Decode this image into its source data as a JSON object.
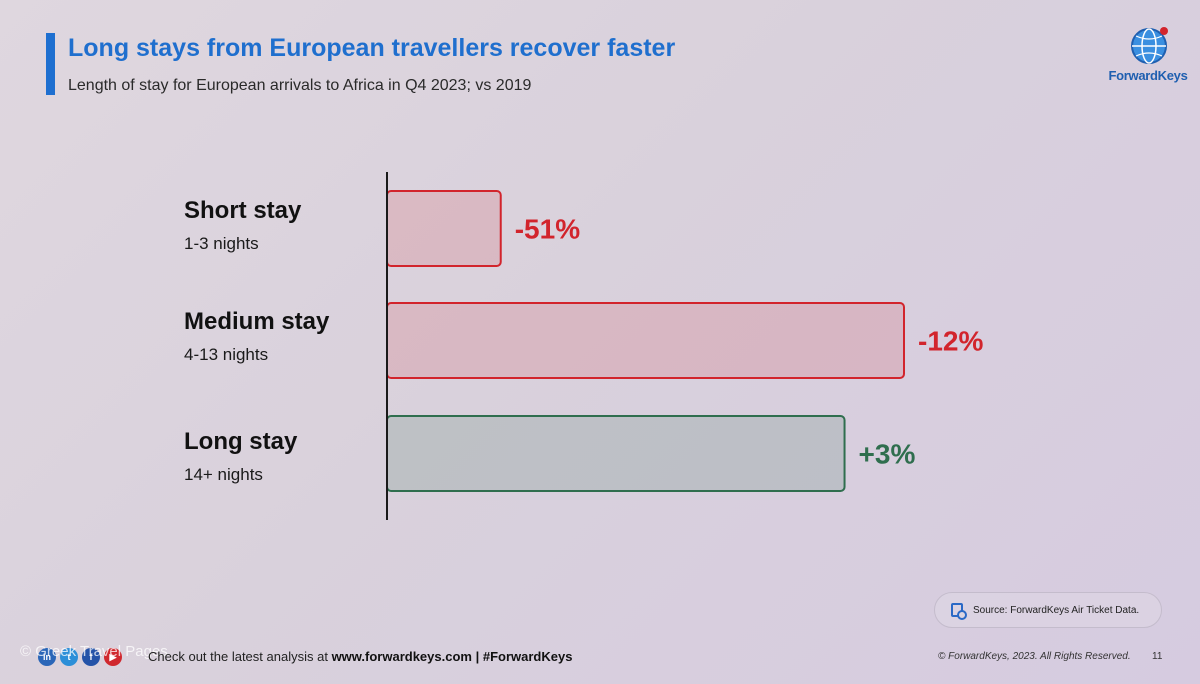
{
  "header": {
    "title": "Long stays from European travellers recover faster",
    "subtitle": "Length of stay for European arrivals to Africa in Q4 2023; vs 2019"
  },
  "logo": {
    "text": "ForwardKeys",
    "icon": "globe-icon"
  },
  "chart_data": {
    "type": "bar",
    "orientation": "horizontal",
    "categories": [
      "Short stay",
      "Medium stay",
      "Long stay"
    ],
    "category_subtitles": [
      "1-3 nights",
      "4-13 nights",
      "14+ nights"
    ],
    "values": [
      -51,
      -12,
      3
    ],
    "value_labels": [
      "-51%",
      "-12%",
      "+3%"
    ],
    "bar_lengths": [
      22,
      100,
      88.5
    ],
    "colors": {
      "negative": "#d2242c",
      "positive": "#2f6e4e"
    },
    "grid": false
  },
  "source": {
    "icon": "document-search-icon",
    "text": "Source: ForwardKeys Air Ticket Data."
  },
  "footer": {
    "watermark": "© Greek Travel Pages",
    "note_prefix": "Check out the latest analysis at",
    "note_link": "www.forwardkeys.com",
    "note_separator": "|",
    "note_hashtag": "#ForwardKeys",
    "copyright": "© ForwardKeys, 2023. All Rights Reserved.",
    "page_number": "11",
    "social_icons": [
      "linkedin-icon",
      "twitter-icon",
      "facebook-icon",
      "youtube-icon"
    ]
  }
}
